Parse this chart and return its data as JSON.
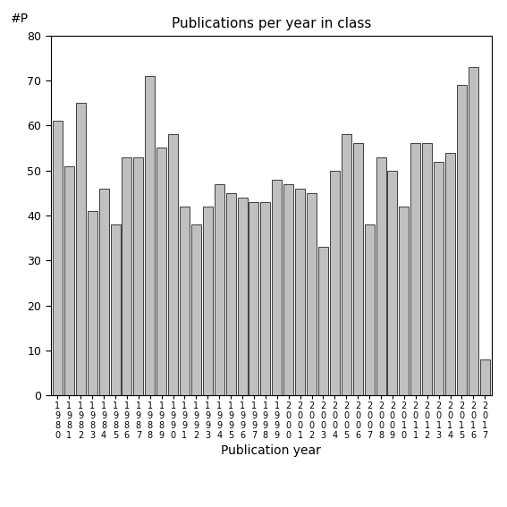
{
  "title": "Publications per year in class",
  "xlabel": "Publication year",
  "ylabel": "#P",
  "years": [
    1980,
    1981,
    1982,
    1983,
    1984,
    1985,
    1986,
    1987,
    1988,
    1989,
    1990,
    1991,
    1992,
    1993,
    1994,
    1995,
    1996,
    1997,
    1998,
    1999,
    2000,
    2001,
    2002,
    2003,
    2004,
    2005,
    2006,
    2007,
    2008,
    2009,
    2010,
    2011,
    2012,
    2013,
    2014,
    2015,
    2016,
    2017
  ],
  "values": [
    61,
    51,
    65,
    41,
    46,
    38,
    53,
    53,
    71,
    55,
    58,
    42,
    38,
    42,
    47,
    45,
    44,
    43,
    43,
    48,
    47,
    46,
    45,
    33,
    50,
    58,
    56,
    38,
    53,
    50,
    42,
    56,
    56,
    52,
    54,
    69,
    73,
    8
  ],
  "bar_color": "#c0c0c0",
  "bar_edgecolor": "#000000",
  "ylim": [
    0,
    80
  ],
  "yticks": [
    0,
    10,
    20,
    30,
    40,
    50,
    60,
    70,
    80
  ],
  "title_fontsize": 11,
  "label_fontsize": 10,
  "tick_fontsize": 9,
  "xtick_fontsize": 7,
  "figsize": [
    5.67,
    5.67
  ],
  "dpi": 100
}
